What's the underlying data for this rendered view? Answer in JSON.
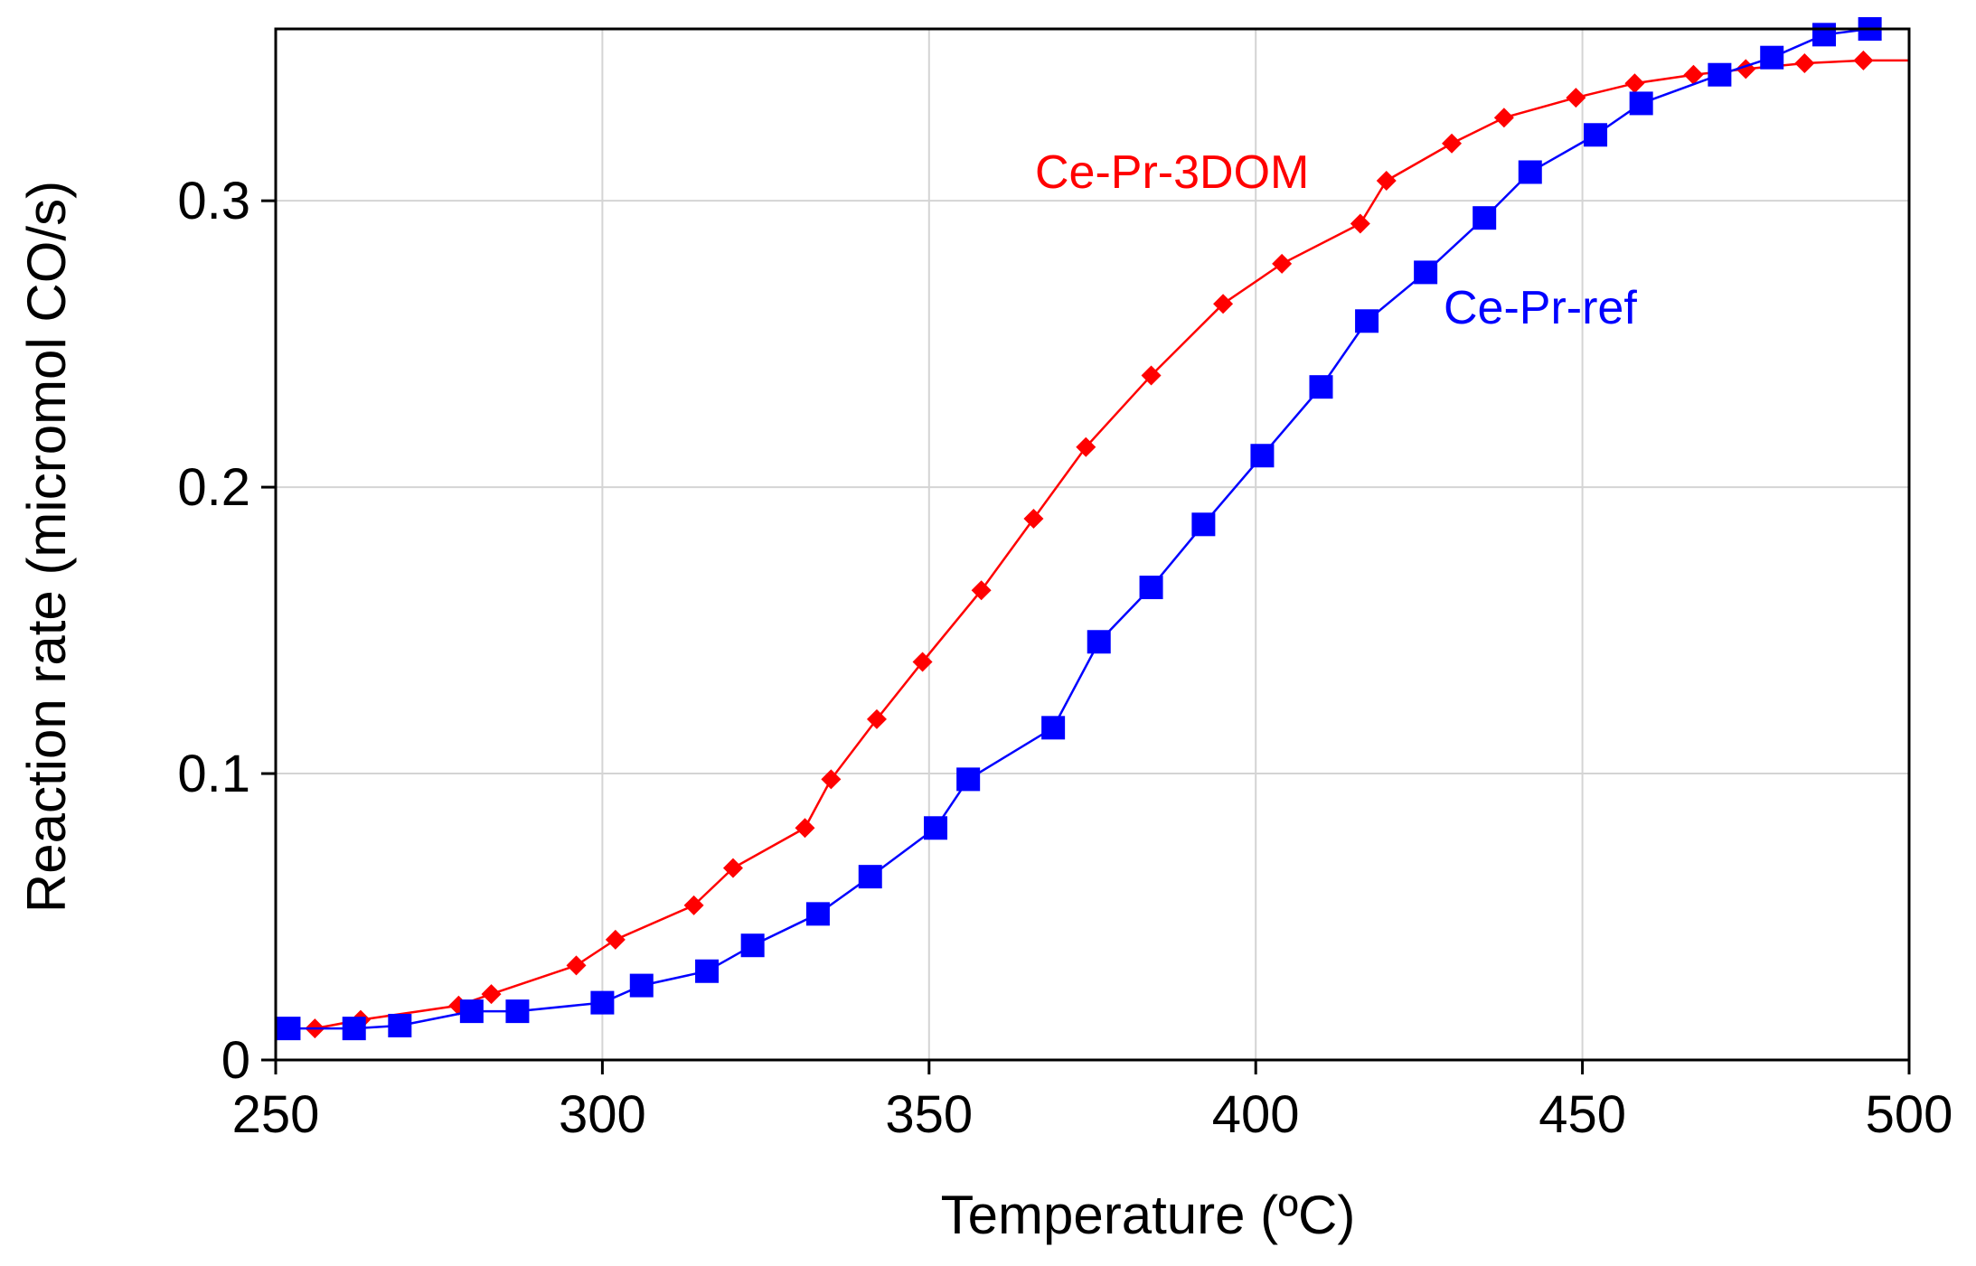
{
  "chart_data": {
    "type": "line",
    "title": "",
    "xlabel": "Temperature (ºC)",
    "ylabel": "Reaction rate (micromol CO/s)",
    "xlim": [
      250,
      500
    ],
    "ylim": [
      0,
      0.36
    ],
    "x_ticks": [
      250,
      300,
      350,
      400,
      450,
      500
    ],
    "x_tick_labels": [
      "250",
      "300",
      "350",
      "400",
      "450",
      "500"
    ],
    "y_ticks": [
      0,
      0.1,
      0.2,
      0.3
    ],
    "y_tick_labels": [
      "0",
      "0.1",
      "0.2",
      "0.3"
    ],
    "grid": true,
    "legend": "inline labels next to curves",
    "series": [
      {
        "name": "Ce-Pr-3DOM",
        "label": "Ce-Pr-3DOM",
        "color": "#ff0000",
        "marker": "diamond",
        "x": [
          256,
          263,
          278,
          283,
          296,
          302,
          314,
          320,
          331,
          335,
          342,
          349,
          358,
          366,
          374,
          384,
          395,
          404,
          416,
          420,
          430,
          438,
          449,
          458,
          467,
          475,
          484,
          493,
          500
        ],
        "y": [
          0.011,
          0.014,
          0.019,
          0.023,
          0.033,
          0.042,
          0.054,
          0.067,
          0.081,
          0.098,
          0.119,
          0.139,
          0.164,
          0.189,
          0.214,
          0.239,
          0.264,
          0.278,
          0.292,
          0.307,
          0.32,
          0.329,
          0.336,
          0.341,
          0.344,
          0.346,
          0.348,
          0.349,
          0.349
        ]
      },
      {
        "name": "Ce-Pr-ref",
        "label": "Ce-Pr-ref",
        "color": "#0000ff",
        "marker": "square",
        "x": [
          252,
          262,
          269,
          280,
          287,
          300,
          306,
          316,
          323,
          333,
          341,
          351,
          356,
          369,
          376,
          384,
          392,
          401,
          410,
          417,
          426,
          435,
          442,
          452,
          459,
          471,
          479,
          487,
          494
        ],
        "y": [
          0.011,
          0.011,
          0.012,
          0.017,
          0.017,
          0.02,
          0.026,
          0.031,
          0.04,
          0.051,
          0.064,
          0.081,
          0.098,
          0.116,
          0.146,
          0.165,
          0.187,
          0.211,
          0.235,
          0.258,
          0.275,
          0.294,
          0.31,
          0.323,
          0.334,
          0.344,
          0.35,
          0.358,
          0.36
        ]
      }
    ]
  }
}
